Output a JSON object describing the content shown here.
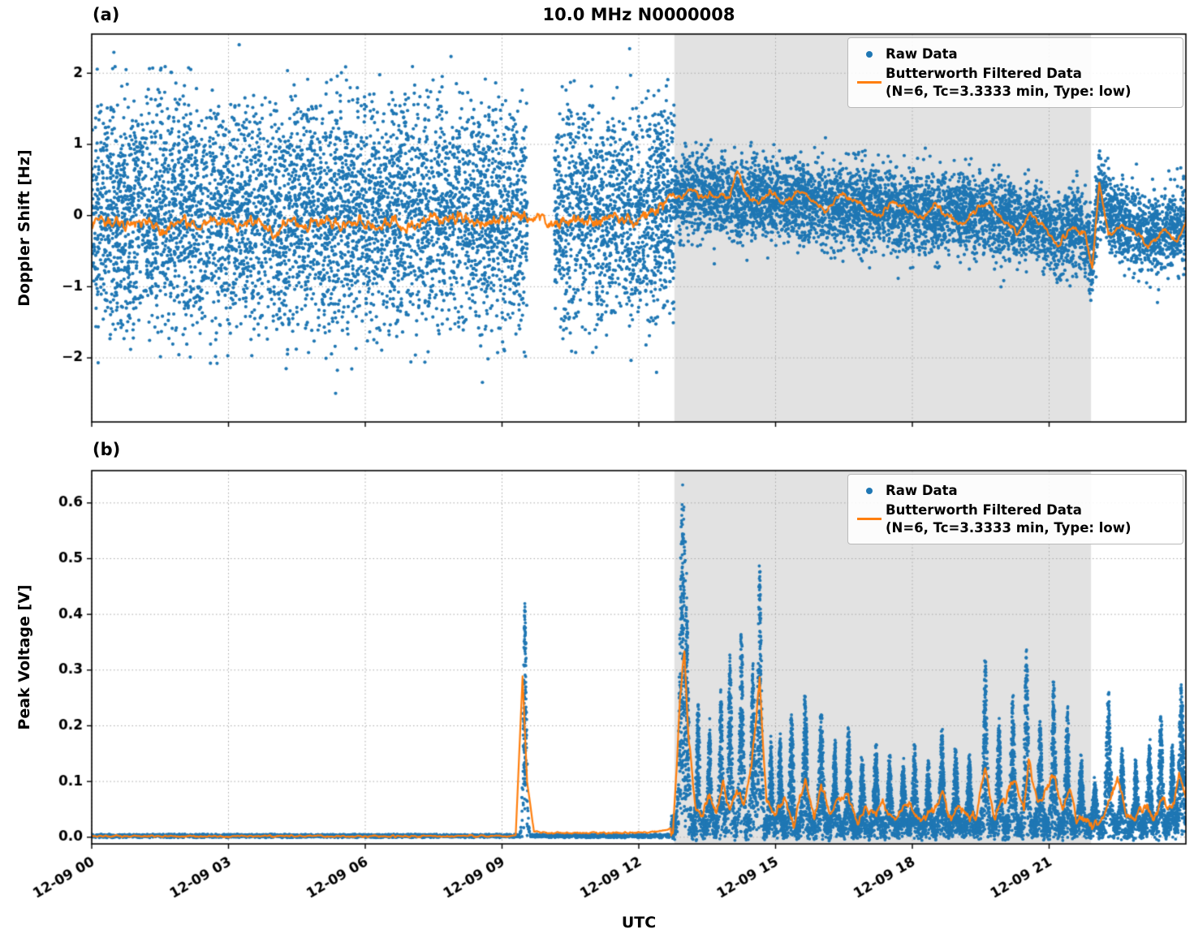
{
  "figure": {
    "title": "10.0 MHz N0000008",
    "xlabel": "UTC",
    "panel_a_label": "(a)",
    "panel_b_label": "(b)",
    "legend": {
      "raw": "Raw Data",
      "filtered_line1": "Butterworth Filtered Data",
      "filtered_line2": "(N=6, Tc=3.3333 min, Type: low)"
    },
    "colors": {
      "raw": "#1f77b4",
      "filtered": "#ff7f0e",
      "shade": "#e2e2e2",
      "grid": "#a8a8a8",
      "spine": "#000000"
    }
  },
  "chart_data": [
    {
      "panel": "a",
      "type": "scatter",
      "title": "10.0 MHz N0000008",
      "ylabel": "Doppler Shift [Hz]",
      "ylim": [
        -2.9,
        2.55
      ],
      "yticks": [
        -2,
        -1,
        0,
        1,
        2
      ],
      "ytick_labels": [
        "−2",
        "−1",
        "0",
        "1",
        "2"
      ],
      "xlim_hours": [
        0,
        24
      ],
      "xtick_hours": [
        0,
        3,
        6,
        9,
        12,
        15,
        18,
        21
      ],
      "xtick_labels": [
        "12-09 00",
        "12-09 03",
        "12-09 06",
        "12-09 09",
        "12-09 12",
        "12-09 15",
        "12-09 18",
        "12-09 21"
      ],
      "show_xtick_labels": false,
      "grid": true,
      "legend_position": "upper right",
      "shade_hours": [
        12.78,
        21.92
      ],
      "raw_scatter": {
        "name": "Raw Data",
        "color": "#1f77b4",
        "gap_hours": [
          9.55,
          10.15
        ],
        "segments": [
          {
            "t0": 0,
            "t1": 9.55,
            "center": [
              [
                0,
                0
              ],
              [
                9.55,
                0
              ]
            ],
            "dense_hw": 1.15,
            "full_hw": 2.1,
            "pts_per_hr": 540
          },
          {
            "t0": 10.15,
            "t1": 12.78,
            "center": [
              [
                10.15,
                0
              ],
              [
                12.78,
                0.05
              ]
            ],
            "dense_hw": 1.05,
            "full_hw": 1.95,
            "pts_per_hr": 540
          },
          {
            "t0": 12.78,
            "t1": 24,
            "center": [
              [
                12.78,
                0.3
              ],
              [
                13.2,
                0.35
              ],
              [
                14,
                0.22
              ],
              [
                14.7,
                0.25
              ],
              [
                15.5,
                0.2
              ],
              [
                16,
                0.15
              ],
              [
                17,
                0.12
              ],
              [
                18,
                0.05
              ],
              [
                19,
                0.02
              ],
              [
                20,
                -0.05
              ],
              [
                20.8,
                -0.1
              ],
              [
                21.2,
                -0.35
              ],
              [
                21.6,
                -0.12
              ],
              [
                21.95,
                -0.55
              ],
              [
                22.1,
                0.35
              ],
              [
                22.5,
                -0.12
              ],
              [
                23,
                -0.18
              ],
              [
                23.3,
                -0.3
              ],
              [
                23.7,
                -0.2
              ],
              [
                24,
                -0.05
              ]
            ],
            "dense_hw": 0.4,
            "full_hw": 0.8,
            "pts_per_hr": 520
          }
        ]
      },
      "filtered_line": {
        "name": "Butterworth Filtered Data",
        "params": "(N=6, Tc=3.3333 min, Type: low)",
        "color": "#ff7f0e",
        "points": [
          [
            0,
            0.02
          ],
          [
            0.4,
            0.08
          ],
          [
            0.8,
            -0.06
          ],
          [
            1.2,
            0.05
          ],
          [
            1.6,
            -0.1
          ],
          [
            2,
            0.03
          ],
          [
            2.4,
            -0.05
          ],
          [
            2.8,
            0.08
          ],
          [
            3.2,
            -0.03
          ],
          [
            3.6,
            0.06
          ],
          [
            4,
            -0.12
          ],
          [
            4.3,
            0.05
          ],
          [
            4.7,
            -0.06
          ],
          [
            5,
            0.08
          ],
          [
            5.4,
            -0.03
          ],
          [
            5.8,
            0.05
          ],
          [
            6.2,
            -0.08
          ],
          [
            6.6,
            0.04
          ],
          [
            7,
            -0.05
          ],
          [
            7.4,
            0.1
          ],
          [
            7.8,
            0.02
          ],
          [
            8.2,
            0.1
          ],
          [
            8.6,
            -0.04
          ],
          [
            9,
            0.08
          ],
          [
            9.4,
            0.14
          ],
          [
            9.8,
            0.06
          ],
          [
            10.2,
            0
          ],
          [
            10.6,
            0.1
          ],
          [
            11,
            0.02
          ],
          [
            11.4,
            0.1
          ],
          [
            11.8,
            0.05
          ],
          [
            12.2,
            0.12
          ],
          [
            12.5,
            0.22
          ],
          [
            12.75,
            0.38
          ],
          [
            12.95,
            0.3
          ],
          [
            13.15,
            0.42
          ],
          [
            13.4,
            0.32
          ],
          [
            13.7,
            0.36
          ],
          [
            14,
            0.3
          ],
          [
            14.15,
            0.72
          ],
          [
            14.35,
            0.36
          ],
          [
            14.6,
            0.22
          ],
          [
            14.9,
            0.4
          ],
          [
            15.2,
            0.22
          ],
          [
            15.5,
            0.42
          ],
          [
            15.8,
            0.28
          ],
          [
            16.1,
            0.12
          ],
          [
            16.4,
            0.36
          ],
          [
            16.7,
            0.3
          ],
          [
            17,
            0.15
          ],
          [
            17.3,
            0.05
          ],
          [
            17.6,
            0.3
          ],
          [
            17.9,
            0.12
          ],
          [
            18.2,
            0.02
          ],
          [
            18.5,
            0.2
          ],
          [
            18.8,
            0.05
          ],
          [
            19.1,
            -0.08
          ],
          [
            19.4,
            0.15
          ],
          [
            19.7,
            0.22
          ],
          [
            20,
            0
          ],
          [
            20.3,
            -0.18
          ],
          [
            20.6,
            0.1
          ],
          [
            20.9,
            -0.12
          ],
          [
            21.2,
            -0.35
          ],
          [
            21.5,
            -0.1
          ],
          [
            21.8,
            -0.2
          ],
          [
            21.95,
            -0.7
          ],
          [
            22.1,
            0.5
          ],
          [
            22.3,
            -0.2
          ],
          [
            22.6,
            -0.08
          ],
          [
            22.9,
            -0.2
          ],
          [
            23.2,
            -0.38
          ],
          [
            23.5,
            -0.15
          ],
          [
            23.8,
            -0.28
          ],
          [
            24,
            -0.05
          ]
        ],
        "wiggle": [
          {
            "t0": 0,
            "t1": 12.6,
            "amp": 0.11
          },
          {
            "t0": 12.6,
            "t1": 24,
            "amp": 0.055
          }
        ]
      }
    },
    {
      "panel": "b",
      "type": "scatter",
      "ylabel": "Peak Voltage [V]",
      "ylim": [
        -0.012,
        0.658
      ],
      "yticks": [
        0,
        0.1,
        0.2,
        0.3,
        0.4,
        0.5,
        0.6
      ],
      "ytick_labels": [
        "0.0",
        "0.1",
        "0.2",
        "0.3",
        "0.4",
        "0.5",
        "0.6"
      ],
      "xlim_hours": [
        0,
        24
      ],
      "xtick_hours": [
        0,
        3,
        6,
        9,
        12,
        15,
        18,
        21
      ],
      "xtick_labels": [
        "12-09 00",
        "12-09 03",
        "12-09 06",
        "12-09 09",
        "12-09 12",
        "12-09 15",
        "12-09 18",
        "12-09 21"
      ],
      "show_xtick_labels": true,
      "grid": true,
      "legend_position": "upper right",
      "shade_hours": [
        12.78,
        21.92
      ],
      "raw_scatter": {
        "name": "Raw Data",
        "color": "#1f77b4",
        "baseline": [
          {
            "t0": 0,
            "t1": 12.7,
            "level": 0.004,
            "jitter": 0.003,
            "pts_per_hr": 240
          },
          {
            "t0": 12.7,
            "t1": 24,
            "level": 0.03,
            "jitter": 0.018,
            "pts_per_hr": 560
          }
        ],
        "spikes": [
          [
            9.5,
            0.43,
            0.035
          ],
          [
            12.95,
            0.6,
            0.05
          ],
          [
            13.05,
            0.4,
            0.04
          ],
          [
            13.3,
            0.22,
            0.035
          ],
          [
            13.55,
            0.18,
            0.035
          ],
          [
            13.8,
            0.25,
            0.035
          ],
          [
            14,
            0.3,
            0.04
          ],
          [
            14.25,
            0.35,
            0.04
          ],
          [
            14.5,
            0.3,
            0.035
          ],
          [
            14.65,
            0.48,
            0.04
          ],
          [
            14.9,
            0.15,
            0.035
          ],
          [
            15.1,
            0.16,
            0.035
          ],
          [
            15.35,
            0.2,
            0.04
          ],
          [
            15.65,
            0.24,
            0.045
          ],
          [
            16,
            0.21,
            0.045
          ],
          [
            16.3,
            0.15,
            0.04
          ],
          [
            16.6,
            0.17,
            0.04
          ],
          [
            16.9,
            0.12,
            0.04
          ],
          [
            17.2,
            0.14,
            0.04
          ],
          [
            17.5,
            0.12,
            0.04
          ],
          [
            17.8,
            0.11,
            0.04
          ],
          [
            18.05,
            0.14,
            0.04
          ],
          [
            18.35,
            0.12,
            0.04
          ],
          [
            18.65,
            0.17,
            0.04
          ],
          [
            18.95,
            0.14,
            0.04
          ],
          [
            19.25,
            0.12,
            0.04
          ],
          [
            19.6,
            0.3,
            0.04
          ],
          [
            19.9,
            0.18,
            0.04
          ],
          [
            20.2,
            0.24,
            0.04
          ],
          [
            20.5,
            0.32,
            0.04
          ],
          [
            20.8,
            0.19,
            0.04
          ],
          [
            21.1,
            0.26,
            0.04
          ],
          [
            21.4,
            0.21,
            0.04
          ],
          [
            21.7,
            0.12,
            0.04
          ],
          [
            22,
            0.08,
            0.04
          ],
          [
            22.3,
            0.24,
            0.045
          ],
          [
            22.6,
            0.14,
            0.04
          ],
          [
            22.9,
            0.12,
            0.04
          ],
          [
            23.2,
            0.15,
            0.04
          ],
          [
            23.45,
            0.2,
            0.04
          ],
          [
            23.7,
            0.14,
            0.04
          ],
          [
            23.9,
            0.25,
            0.05
          ]
        ]
      },
      "filtered_line": {
        "name": "Butterworth Filtered Data",
        "params": "(N=6, Tc=3.3333 min, Type: low)",
        "color": "#ff7f0e",
        "points": [
          [
            0,
            0.004
          ],
          [
            2,
            0.004
          ],
          [
            4,
            0.004
          ],
          [
            6,
            0.004
          ],
          [
            8,
            0.004
          ],
          [
            9,
            0.004
          ],
          [
            9.3,
            0.005
          ],
          [
            9.45,
            0.29
          ],
          [
            9.55,
            0.1
          ],
          [
            9.7,
            0.012
          ],
          [
            10,
            0.01
          ],
          [
            11,
            0.01
          ],
          [
            12,
            0.01
          ],
          [
            12.5,
            0.012
          ],
          [
            12.75,
            0.02
          ],
          [
            12.9,
            0.25
          ],
          [
            13,
            0.35
          ],
          [
            13.1,
            0.18
          ],
          [
            13.25,
            0.07
          ],
          [
            13.4,
            0.05
          ],
          [
            13.55,
            0.09
          ],
          [
            13.7,
            0.05
          ],
          [
            13.85,
            0.11
          ],
          [
            14,
            0.06
          ],
          [
            14.15,
            0.1
          ],
          [
            14.3,
            0.07
          ],
          [
            14.5,
            0.16
          ],
          [
            14.65,
            0.29
          ],
          [
            14.8,
            0.08
          ],
          [
            15,
            0.05
          ],
          [
            15.2,
            0.09
          ],
          [
            15.4,
            0.04
          ],
          [
            15.65,
            0.12
          ],
          [
            15.85,
            0.05
          ],
          [
            16,
            0.11
          ],
          [
            16.2,
            0.05
          ],
          [
            16.4,
            0.08
          ],
          [
            16.6,
            0.09
          ],
          [
            16.8,
            0.04
          ],
          [
            17,
            0.07
          ],
          [
            17.2,
            0.05
          ],
          [
            17.35,
            0.08
          ],
          [
            17.55,
            0.04
          ],
          [
            17.75,
            0.06
          ],
          [
            18,
            0.07
          ],
          [
            18.2,
            0.04
          ],
          [
            18.4,
            0.06
          ],
          [
            18.65,
            0.09
          ],
          [
            18.85,
            0.04
          ],
          [
            19,
            0.07
          ],
          [
            19.2,
            0.05
          ],
          [
            19.4,
            0.05
          ],
          [
            19.6,
            0.14
          ],
          [
            19.8,
            0.05
          ],
          [
            20,
            0.08
          ],
          [
            20.25,
            0.12
          ],
          [
            20.45,
            0.06
          ],
          [
            20.55,
            0.15
          ],
          [
            20.75,
            0.07
          ],
          [
            20.9,
            0.09
          ],
          [
            21.1,
            0.12
          ],
          [
            21.3,
            0.07
          ],
          [
            21.45,
            0.1
          ],
          [
            21.6,
            0.05
          ],
          [
            21.8,
            0.04
          ],
          [
            22,
            0.035
          ],
          [
            22.2,
            0.05
          ],
          [
            22.5,
            0.12
          ],
          [
            22.7,
            0.05
          ],
          [
            22.9,
            0.05
          ],
          [
            23.1,
            0.07
          ],
          [
            23.3,
            0.05
          ],
          [
            23.5,
            0.08
          ],
          [
            23.7,
            0.06
          ],
          [
            23.85,
            0.13
          ],
          [
            24,
            0.09
          ]
        ],
        "wiggle": [
          {
            "t0": 0,
            "t1": 12.7,
            "amp": 0.002
          },
          {
            "t0": 12.7,
            "t1": 24,
            "amp": 0.012
          }
        ]
      }
    }
  ]
}
